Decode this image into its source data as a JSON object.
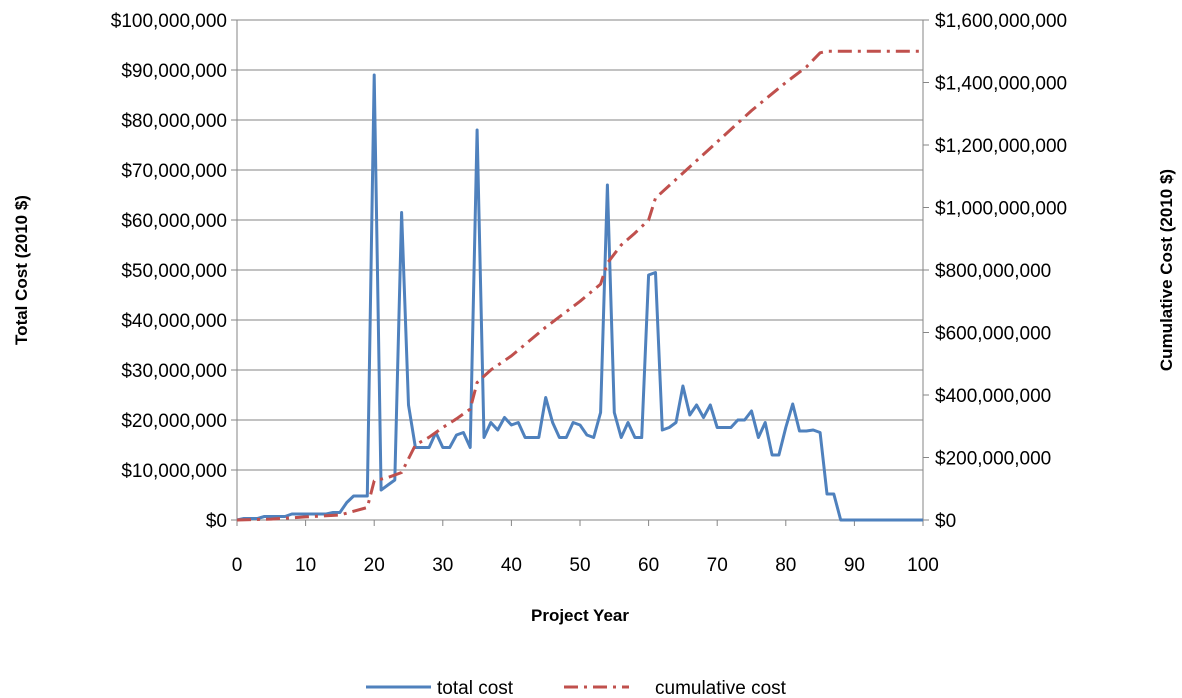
{
  "chart_data": {
    "type": "line",
    "title": "",
    "xlabel": "Project Year",
    "ylabel": "Total Cost (2010 $)",
    "y2label": "Cumulative Cost (2010 $)",
    "xlim": [
      0,
      100
    ],
    "ylim": [
      0,
      100000000
    ],
    "y2lim": [
      0,
      1600000000
    ],
    "x_ticks": [
      "0",
      "10",
      "20",
      "30",
      "40",
      "50",
      "60",
      "70",
      "80",
      "90",
      "100"
    ],
    "y_ticks": [
      "$0",
      "$10,000,000",
      "$20,000,000",
      "$30,000,000",
      "$40,000,000",
      "$50,000,000",
      "$60,000,000",
      "$70,000,000",
      "$80,000,000",
      "$90,000,000",
      "$100,000,000"
    ],
    "y2_ticks": [
      "$0",
      "$200,000,000",
      "$400,000,000",
      "$600,000,000",
      "$800,000,000",
      "$1,000,000,000",
      "$1,200,000,000",
      "$1,400,000,000",
      "$1,600,000,000"
    ],
    "grid": "horizontal major",
    "legend": "bottom",
    "series": [
      {
        "name": "total cost",
        "axis": "left",
        "color": "#4F81BD",
        "style": "solid",
        "x": [
          0,
          1,
          2,
          3,
          4,
          5,
          6,
          7,
          8,
          9,
          10,
          11,
          12,
          13,
          14,
          15,
          16,
          17,
          18,
          19,
          20,
          21,
          22,
          23,
          24,
          25,
          26,
          27,
          28,
          29,
          30,
          31,
          32,
          33,
          34,
          35,
          36,
          37,
          38,
          39,
          40,
          41,
          42,
          43,
          44,
          45,
          46,
          47,
          48,
          49,
          50,
          51,
          52,
          53,
          54,
          55,
          56,
          57,
          58,
          59,
          60,
          61,
          62,
          63,
          64,
          65,
          66,
          67,
          68,
          69,
          70,
          71,
          72,
          73,
          74,
          75,
          76,
          77,
          78,
          79,
          80,
          81,
          82,
          83,
          84,
          85,
          86,
          87,
          88,
          89,
          90,
          91,
          92,
          93,
          94,
          95,
          96,
          97,
          98,
          99,
          100
        ],
        "values": [
          0,
          300000,
          300000,
          300000,
          700000,
          700000,
          700000,
          700000,
          1200000,
          1200000,
          1200000,
          1200000,
          1200000,
          1200000,
          1500000,
          1500000,
          3500000,
          4800000,
          4800000,
          4800000,
          89000000,
          6000000,
          7000000,
          8000000,
          61500000,
          23000000,
          14500000,
          14500000,
          14500000,
          17500000,
          14500000,
          14500000,
          17000000,
          17500000,
          14500000,
          78000000,
          16500000,
          19500000,
          18000000,
          20500000,
          19000000,
          19500000,
          16500000,
          16500000,
          16500000,
          24500000,
          19500000,
          16500000,
          16500000,
          19500000,
          19000000,
          17000000,
          16500000,
          21500000,
          67000000,
          21500000,
          16500000,
          19500000,
          16500000,
          16500000,
          49000000,
          49500000,
          18000000,
          18500000,
          19500000,
          26800000,
          21000000,
          23000000,
          20500000,
          23000000,
          18500000,
          18500000,
          18500000,
          20000000,
          20000000,
          21800000,
          16500000,
          19500000,
          13000000,
          13000000,
          18500000,
          23200000,
          17800000,
          17800000,
          18000000,
          17500000,
          5200000,
          5200000,
          0,
          0,
          0,
          0,
          0,
          0,
          0,
          0,
          0,
          0,
          0,
          0,
          0
        ]
      },
      {
        "name": "cumulative cost",
        "axis": "right",
        "color": "#C0504D",
        "style": "dash-dot",
        "x": [
          0,
          5,
          10,
          15,
          19,
          20,
          22,
          24,
          26,
          28,
          30,
          32,
          34,
          35,
          37,
          40,
          45,
          50,
          53,
          54,
          56,
          58,
          60,
          61,
          65,
          70,
          75,
          80,
          83,
          85,
          86,
          88,
          90,
          95,
          100
        ],
        "values": [
          0,
          3000000,
          10000000,
          16000000,
          40000000,
          125000000,
          136000000,
          152000000,
          240000000,
          265000000,
          296000000,
          324000000,
          355000000,
          440000000,
          480000000,
          525000000,
          617000000,
          700000000,
          755000000,
          822000000,
          880000000,
          918000000,
          960000000,
          1030000000,
          1110000000,
          1210000000,
          1310000000,
          1400000000,
          1450000000,
          1495000000,
          1500000000,
          1500000000,
          1500000000,
          1500000000,
          1500000000
        ]
      }
    ]
  }
}
